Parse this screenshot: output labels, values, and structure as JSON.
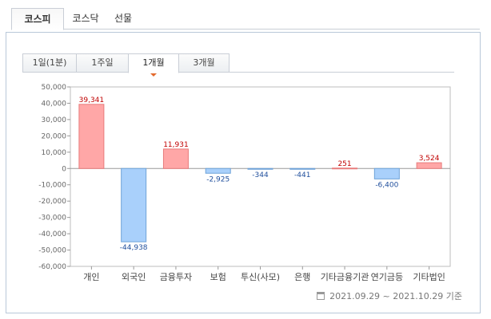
{
  "market_tabs": [
    {
      "label": "코스피",
      "active": true
    },
    {
      "label": "코스닥",
      "active": false
    },
    {
      "label": "선물",
      "active": false
    }
  ],
  "period_tabs": [
    {
      "label": "1일(1분)",
      "active": false
    },
    {
      "label": "1주일",
      "active": false
    },
    {
      "label": "1개월",
      "active": true
    },
    {
      "label": "3개월",
      "active": false
    }
  ],
  "colors": {
    "positive_fill": "#ffa7a7",
    "positive_stroke": "#e87c7c",
    "negative_fill": "#a9d0fb",
    "negative_stroke": "#6fa3d9",
    "positive_text": "#c00000",
    "negative_text": "#1f4e9c"
  },
  "chart_data": {
    "type": "bar",
    "categories": [
      "개인",
      "외국인",
      "금융투자",
      "보험",
      "투신(사모)",
      "은행",
      "기타금융기관",
      "연기금등",
      "기타법인"
    ],
    "values": [
      39341,
      -44938,
      11931,
      -2925,
      -344,
      -441,
      251,
      -6400,
      3524
    ],
    "value_labels": [
      "39,341",
      "-44,938",
      "11,931",
      "-2,925",
      "-344",
      "-441",
      "251",
      "-6,400",
      "3,524"
    ],
    "y_ticks": [
      "50,000",
      "40,000",
      "30,000",
      "20,000",
      "10,000",
      "0",
      "-10,000",
      "-20,000",
      "-30,000",
      "-40,000",
      "-50,000",
      "-60,000"
    ],
    "y_tick_values": [
      50000,
      40000,
      30000,
      20000,
      10000,
      0,
      -10000,
      -20000,
      -30000,
      -40000,
      -50000,
      -60000
    ],
    "ylim": [
      -60000,
      50000
    ],
    "grid": false,
    "title": "",
    "xlabel": "",
    "ylabel": ""
  },
  "footer": {
    "date_range": "2021.09.29 ~ 2021.10.29 기준"
  }
}
